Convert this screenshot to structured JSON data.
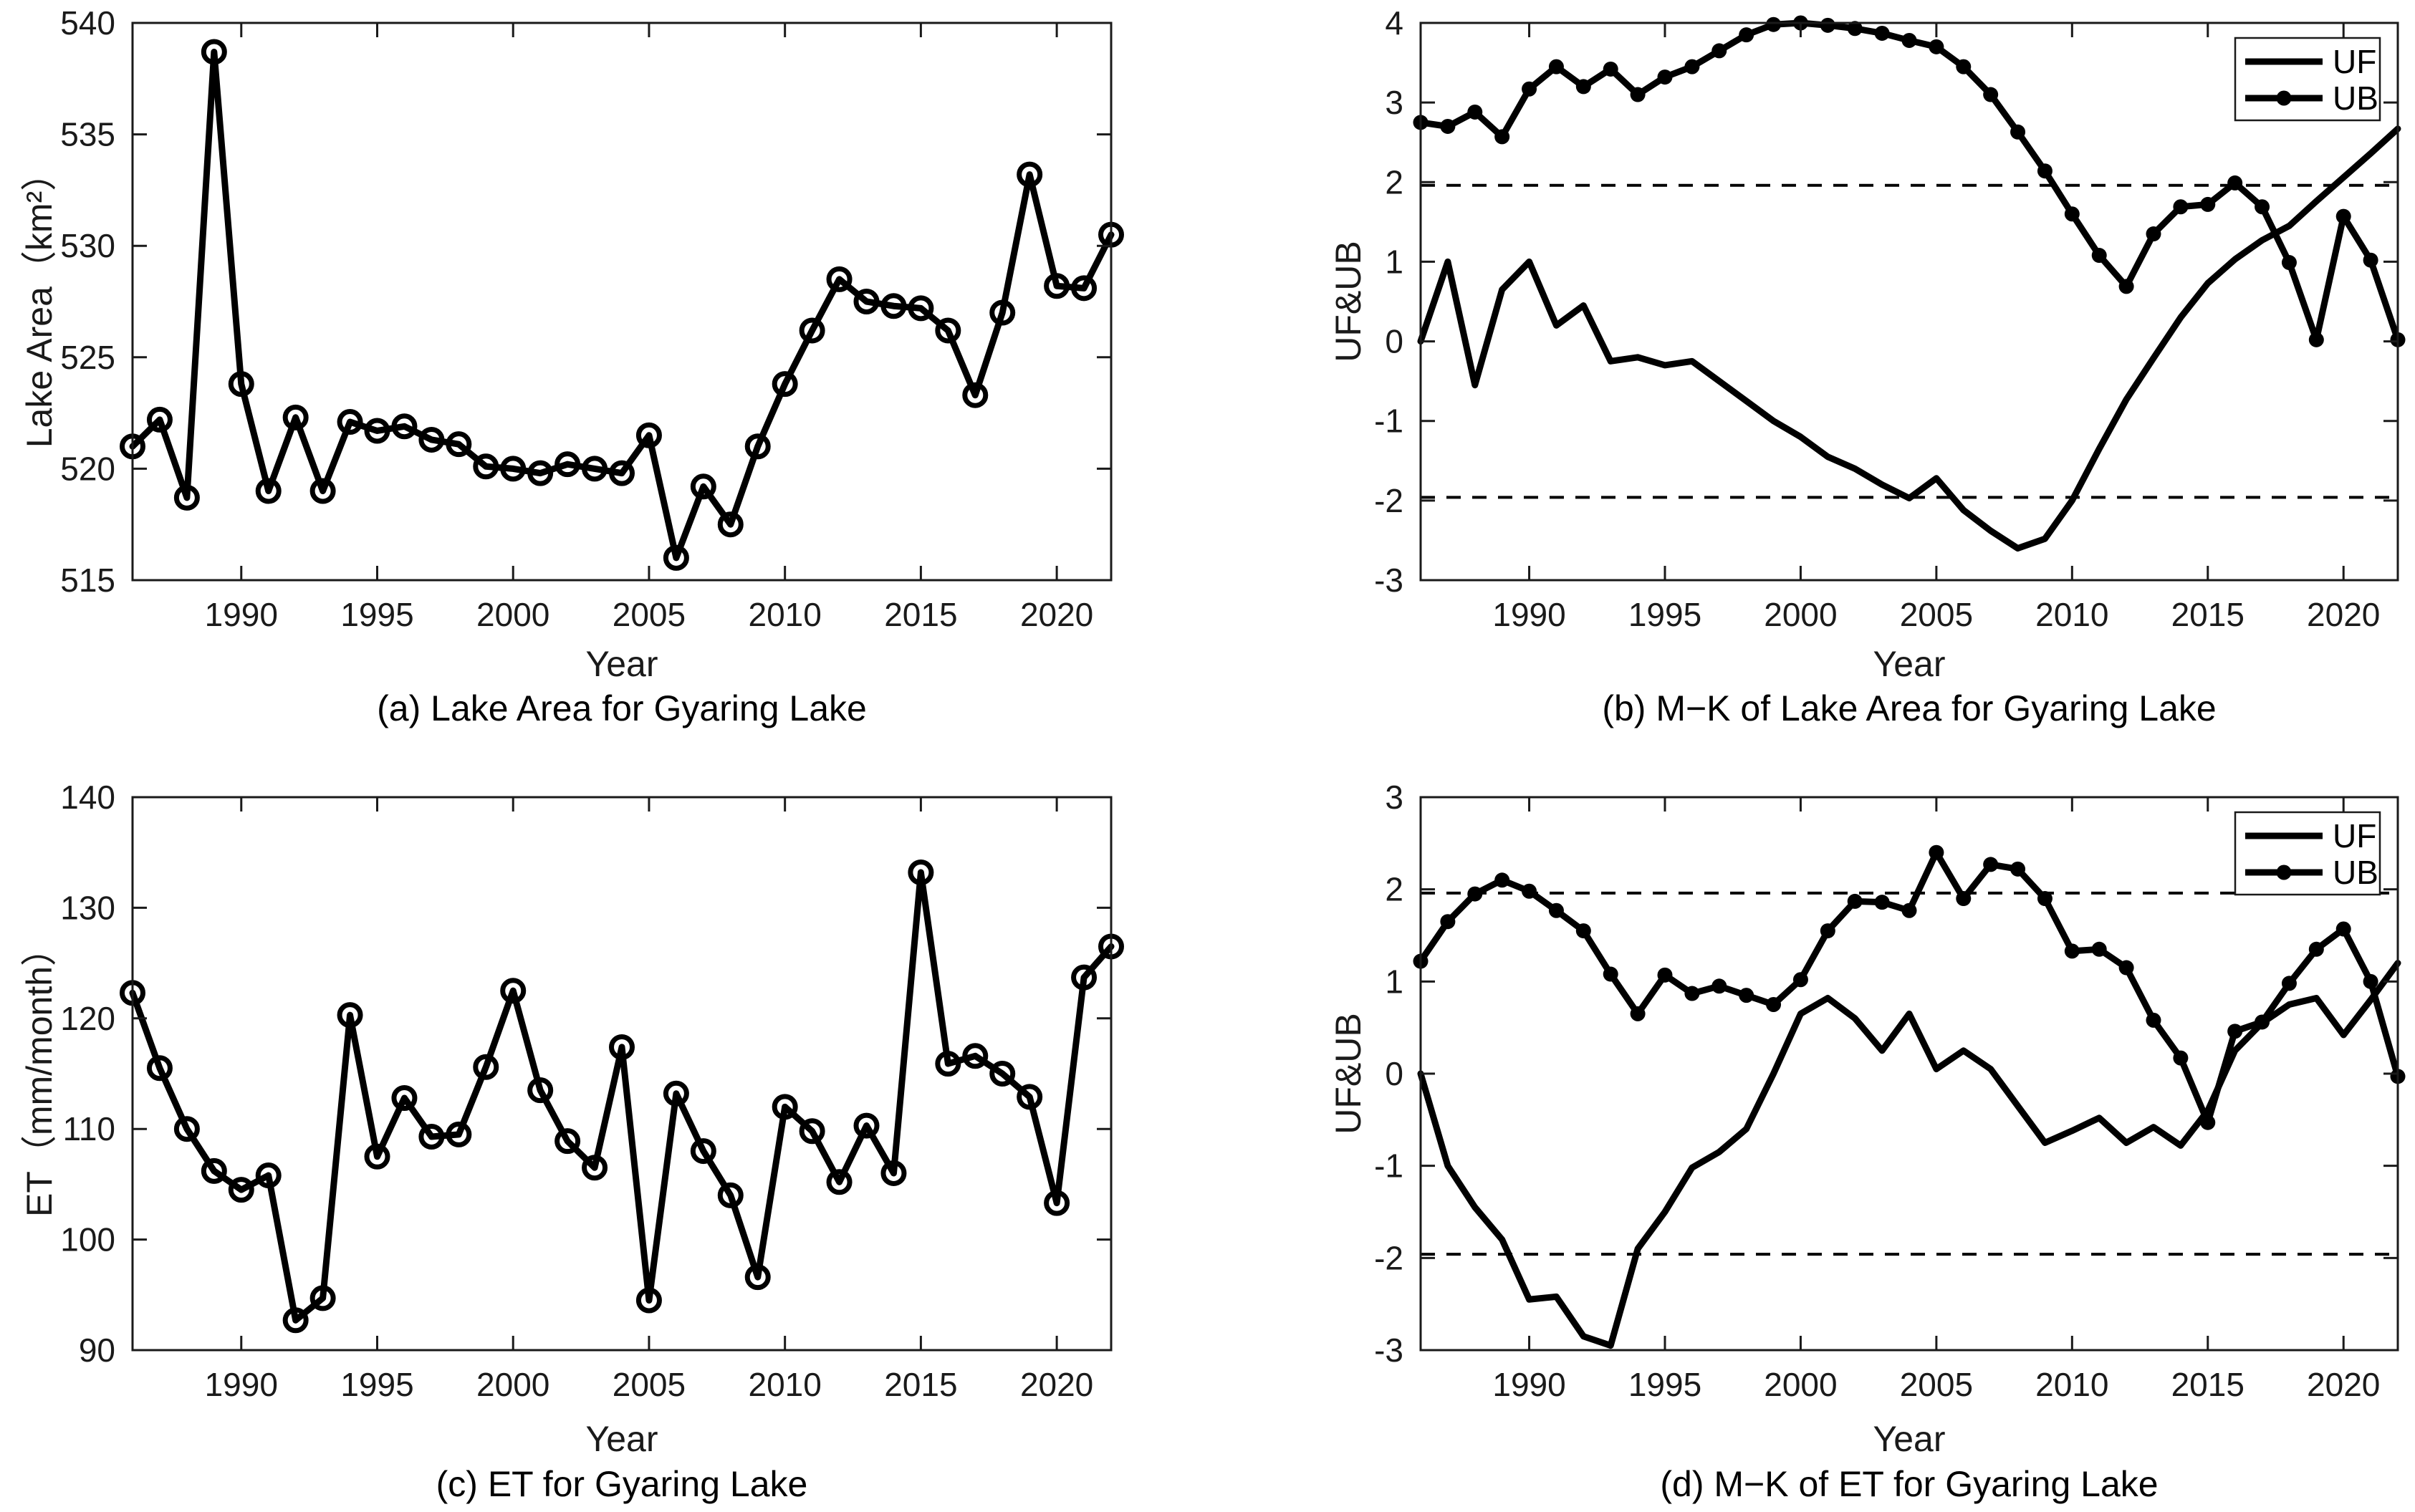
{
  "figure": {
    "background": "#ffffff",
    "line_color": "#000000",
    "axis_color": "#1a1a1a"
  },
  "chart_data": [
    {
      "panel": "a",
      "type": "line",
      "title": "(a) Lake Area for Gyaring Lake",
      "xlabel": "Year",
      "ylabel": "Lake Area（km²）",
      "xlim": [
        1986,
        2022
      ],
      "ylim": [
        515,
        540
      ],
      "xticks": [
        1990,
        1995,
        2000,
        2005,
        2010,
        2015,
        2020
      ],
      "yticks": [
        515,
        520,
        525,
        530,
        535,
        540
      ],
      "thresholds": [],
      "legend": null,
      "x": [
        1986,
        1987,
        1988,
        1989,
        1990,
        1991,
        1992,
        1993,
        1994,
        1995,
        1996,
        1997,
        1998,
        1999,
        2000,
        2001,
        2002,
        2003,
        2004,
        2005,
        2006,
        2007,
        2008,
        2009,
        2010,
        2011,
        2012,
        2013,
        2014,
        2015,
        2016,
        2017,
        2018,
        2019,
        2020,
        2021,
        2022
      ],
      "series": [
        {
          "name": "Lake Area",
          "marker": "open-circle",
          "values": [
            521.0,
            522.2,
            518.7,
            538.7,
            523.8,
            519.0,
            522.3,
            519.0,
            522.1,
            521.7,
            521.9,
            521.3,
            521.1,
            520.1,
            520.0,
            519.8,
            520.2,
            520.0,
            519.8,
            521.5,
            516.0,
            519.2,
            517.5,
            521.0,
            523.8,
            526.2,
            528.5,
            527.5,
            527.3,
            527.2,
            526.2,
            523.3,
            527.0,
            533.2,
            528.2,
            528.1,
            530.5
          ]
        }
      ]
    },
    {
      "panel": "b",
      "type": "line",
      "title": "(b) M−K of Lake Area for Gyaring Lake",
      "xlabel": "Year",
      "ylabel": "UF&UB",
      "xlim": [
        1986,
        2022
      ],
      "ylim": [
        -3,
        4
      ],
      "xticks": [
        1990,
        1995,
        2000,
        2005,
        2010,
        2015,
        2020
      ],
      "yticks": [
        -3,
        -2,
        -1,
        0,
        1,
        2,
        3,
        4
      ],
      "thresholds": [
        1.96,
        -1.96
      ],
      "legend": {
        "entries": [
          "UF",
          "UB"
        ],
        "position": "top-right"
      },
      "x": [
        1986,
        1987,
        1988,
        1989,
        1990,
        1991,
        1992,
        1993,
        1994,
        1995,
        1996,
        1997,
        1998,
        1999,
        2000,
        2001,
        2002,
        2003,
        2004,
        2005,
        2006,
        2007,
        2008,
        2009,
        2010,
        2011,
        2012,
        2013,
        2014,
        2015,
        2016,
        2017,
        2018,
        2019,
        2020,
        2021,
        2022
      ],
      "series": [
        {
          "name": "UF",
          "marker": "none",
          "values": [
            0.0,
            1.0,
            -0.55,
            0.65,
            1.0,
            0.2,
            0.45,
            -0.25,
            -0.2,
            -0.3,
            -0.25,
            -0.5,
            -0.75,
            -1.0,
            -1.2,
            -1.45,
            -1.6,
            -1.8,
            -1.97,
            -1.72,
            -2.12,
            -2.38,
            -2.6,
            -2.48,
            -2.0,
            -1.35,
            -0.73,
            -0.21,
            0.3,
            0.73,
            1.03,
            1.27,
            1.45,
            1.76,
            2.06,
            2.36,
            2.67
          ]
        },
        {
          "name": "UB",
          "marker": "filled-circle",
          "values": [
            2.75,
            2.7,
            2.88,
            2.57,
            3.17,
            3.45,
            3.2,
            3.42,
            3.1,
            3.32,
            3.45,
            3.65,
            3.85,
            3.98,
            4.0,
            3.97,
            3.93,
            3.87,
            3.78,
            3.7,
            3.45,
            3.1,
            2.63,
            2.14,
            1.6,
            1.08,
            0.69,
            1.35,
            1.69,
            1.72,
            1.99,
            1.69,
            0.99,
            0.02,
            1.57,
            1.02,
            0.02
          ]
        }
      ]
    },
    {
      "panel": "c",
      "type": "line",
      "title": "(c) ET for Gyaring Lake",
      "xlabel": "Year",
      "ylabel": "ET（mm/month）",
      "xlim": [
        1986,
        2022
      ],
      "ylim": [
        90,
        140
      ],
      "xticks": [
        1990,
        1995,
        2000,
        2005,
        2010,
        2015,
        2020
      ],
      "yticks": [
        90,
        100,
        110,
        120,
        130,
        140
      ],
      "thresholds": [],
      "legend": null,
      "x": [
        1986,
        1987,
        1988,
        1989,
        1990,
        1991,
        1992,
        1993,
        1994,
        1995,
        1996,
        1997,
        1998,
        1999,
        2000,
        2001,
        2002,
        2003,
        2004,
        2005,
        2006,
        2007,
        2008,
        2009,
        2010,
        2011,
        2012,
        2013,
        2014,
        2015,
        2016,
        2017,
        2018,
        2019,
        2020,
        2021,
        2022
      ],
      "series": [
        {
          "name": "ET",
          "marker": "open-circle",
          "values": [
            122.3,
            115.5,
            110.0,
            106.2,
            104.5,
            105.8,
            92.7,
            94.7,
            120.3,
            107.5,
            112.8,
            109.3,
            109.5,
            115.6,
            122.5,
            113.5,
            108.9,
            106.5,
            117.4,
            94.5,
            113.2,
            108.0,
            104.0,
            96.6,
            112.0,
            109.8,
            105.2,
            110.3,
            106.0,
            133.2,
            115.9,
            116.6,
            115.0,
            112.9,
            103.3,
            123.7,
            126.5
          ]
        }
      ]
    },
    {
      "panel": "d",
      "type": "line",
      "title": "(d) M−K of ET for Gyaring Lake",
      "xlabel": "Year",
      "ylabel": "UF&UB",
      "xlim": [
        1986,
        2022
      ],
      "ylim": [
        -3,
        3
      ],
      "xticks": [
        1990,
        1995,
        2000,
        2005,
        2010,
        2015,
        2020
      ],
      "yticks": [
        -3,
        -2,
        -1,
        0,
        1,
        2,
        3
      ],
      "thresholds": [
        1.96,
        -1.96
      ],
      "legend": {
        "entries": [
          "UF",
          "UB"
        ],
        "position": "top-right"
      },
      "x": [
        1986,
        1987,
        1988,
        1989,
        1990,
        1991,
        1992,
        1993,
        1994,
        1995,
        1996,
        1997,
        1998,
        1999,
        2000,
        2001,
        2002,
        2003,
        2004,
        2005,
        2006,
        2007,
        2008,
        2009,
        2010,
        2011,
        2012,
        2013,
        2014,
        2015,
        2016,
        2017,
        2018,
        2019,
        2020,
        2021,
        2022
      ],
      "series": [
        {
          "name": "UF",
          "marker": "none",
          "values": [
            0.0,
            -1.0,
            -1.45,
            -1.8,
            -2.45,
            -2.42,
            -2.85,
            -2.95,
            -1.9,
            -1.5,
            -1.02,
            -0.85,
            -0.6,
            0.0,
            0.65,
            0.82,
            0.6,
            0.25,
            0.65,
            0.05,
            0.25,
            0.05,
            -0.35,
            -0.75,
            -0.62,
            -0.48,
            -0.75,
            -0.58,
            -0.78,
            -0.4,
            0.25,
            0.55,
            0.75,
            0.82,
            0.42,
            0.8,
            1.2
          ]
        },
        {
          "name": "UB",
          "marker": "filled-circle",
          "values": [
            1.22,
            1.65,
            1.95,
            2.1,
            1.98,
            1.77,
            1.55,
            1.08,
            0.65,
            1.07,
            0.87,
            0.95,
            0.85,
            0.75,
            1.02,
            1.55,
            1.87,
            1.86,
            1.77,
            2.4,
            1.9,
            2.27,
            2.22,
            1.9,
            1.33,
            1.35,
            1.15,
            0.58,
            0.17,
            -0.53,
            0.46,
            0.56,
            0.98,
            1.35,
            1.57,
            1.0,
            -0.03
          ]
        }
      ]
    }
  ]
}
